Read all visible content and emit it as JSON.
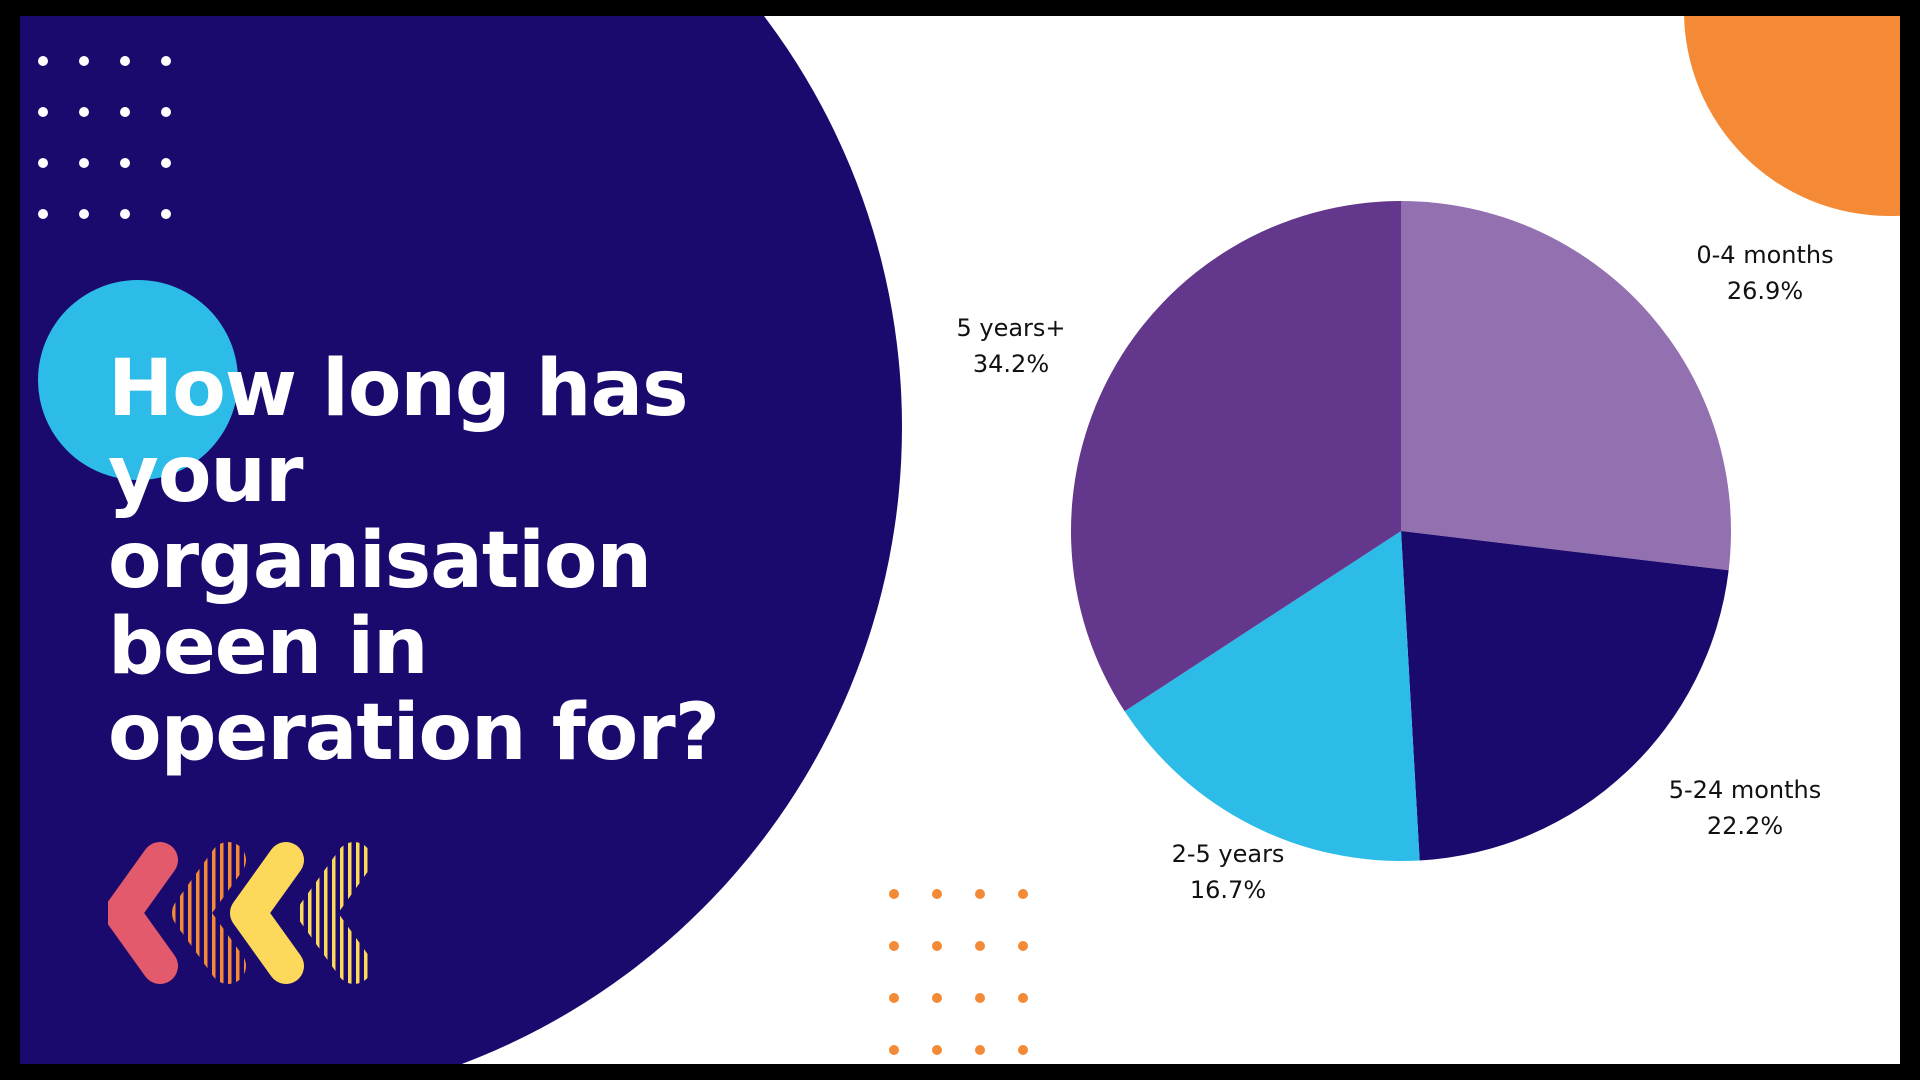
{
  "slide": {
    "title": "How long has your organisation been in operation for?"
  },
  "colors": {
    "background_dark": "#1a0a6e",
    "accent_blue": "#2dbbe8",
    "accent_orange": "#f48a35",
    "chevron_red": "#e25a6c",
    "chevron_yellow": "#fdd95b"
  },
  "chart_data": {
    "type": "pie",
    "start_angle": "12 o'clock, clockwise",
    "slices": [
      {
        "label": "0-4 months",
        "value": 26.9,
        "display": "26.9%",
        "color": "#9370b0"
      },
      {
        "label": "5-24 months",
        "value": 22.2,
        "display": "22.2%",
        "color": "#1a0a6e"
      },
      {
        "label": "2-5 years",
        "value": 16.7,
        "display": "16.7%",
        "color": "#2dbbe8"
      },
      {
        "label": "5 years+",
        "value": 34.2,
        "display": "34.2%",
        "color": "#62378c"
      }
    ]
  }
}
